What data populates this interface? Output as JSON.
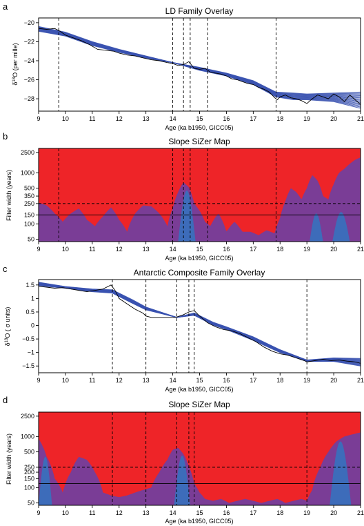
{
  "colors": {
    "band_line": "#3a52b0",
    "record_line": "#000000",
    "sizer_increase": "#ee2428",
    "sizer_insignificant": "#7a3d96",
    "sizer_decrease": "#3d6cba"
  },
  "chart_data": [
    {
      "panel_letter": "a",
      "type": "line",
      "title": "LD Family Overlay",
      "xlabel": "Age (ka b1950, GICC05)",
      "ylabel_prefix": "δ",
      "ylabel_sup": "18",
      "ylabel_suffix": "O (per mille)",
      "xlim": [
        9,
        21
      ],
      "ylim": [
        -29.3,
        -19.5
      ],
      "xticks": [
        9,
        10,
        11,
        12,
        13,
        14,
        15,
        16,
        17,
        18,
        19,
        20,
        21
      ],
      "yticks": [
        -28,
        -26,
        -24,
        -22,
        -20
      ],
      "vlines": [
        9.75,
        14.0,
        14.4,
        14.65,
        15.3,
        17.85
      ],
      "record": {
        "x": [
          9.0,
          9.3,
          9.6,
          9.8,
          10.0,
          10.3,
          10.6,
          10.9,
          11.2,
          11.5,
          11.8,
          12.0,
          12.3,
          12.6,
          12.9,
          13.2,
          13.5,
          13.8,
          14.0,
          14.2,
          14.4,
          14.6,
          14.8,
          15.0,
          15.2,
          15.4,
          15.6,
          15.8,
          16.0,
          16.2,
          16.4,
          16.6,
          16.8,
          17.0,
          17.2,
          17.4,
          17.6,
          17.8,
          17.9,
          18.0,
          18.2,
          18.4,
          18.6,
          18.8,
          19.0,
          19.2,
          19.4,
          19.6,
          19.8,
          20.0,
          20.2,
          20.4,
          20.6,
          20.8,
          21.0
        ],
        "y": [
          -20.6,
          -20.7,
          -20.6,
          -20.9,
          -21.3,
          -21.6,
          -21.9,
          -22.3,
          -22.8,
          -22.9,
          -23.0,
          -23.2,
          -23.4,
          -23.5,
          -23.7,
          -23.9,
          -24.0,
          -24.2,
          -24.3,
          -24.5,
          -24.4,
          -24.1,
          -24.8,
          -24.9,
          -24.8,
          -25.2,
          -25.3,
          -25.4,
          -25.6,
          -25.9,
          -26.0,
          -26.2,
          -26.4,
          -26.5,
          -26.8,
          -27.0,
          -27.3,
          -27.9,
          -28.1,
          -27.8,
          -27.6,
          -27.9,
          -28.0,
          -28.2,
          -28.5,
          -28.0,
          -27.6,
          -27.8,
          -28.0,
          -27.5,
          -27.8,
          -28.3,
          -27.6,
          -28.1,
          -28.6
        ]
      },
      "band": {
        "x": [
          9.0,
          10.0,
          11.0,
          12.0,
          13.0,
          14.0,
          15.0,
          16.0,
          17.0,
          17.85,
          18.5,
          19.0,
          20.0,
          21.0
        ],
        "lower": [
          -20.9,
          -21.4,
          -22.4,
          -23.1,
          -23.7,
          -24.2,
          -25.0,
          -25.6,
          -26.5,
          -27.8,
          -28.1,
          -28.1,
          -28.3,
          -29.0
        ],
        "upper": [
          -20.4,
          -21.0,
          -22.0,
          -22.8,
          -23.5,
          -24.2,
          -24.7,
          -25.3,
          -26.1,
          -27.3,
          -27.4,
          -27.5,
          -27.4,
          -27.3
        ]
      }
    },
    {
      "panel_letter": "b",
      "type": "heatmap",
      "title": "Slope SiZer Map",
      "xlabel": "Age (ka b1950, GICC05)",
      "ylabel": "Filter width (years)",
      "xlim": [
        9,
        21
      ],
      "log_y": true,
      "ylim": [
        45,
        3000
      ],
      "xticks": [
        9,
        10,
        11,
        12,
        13,
        14,
        15,
        16,
        17,
        18,
        19,
        20,
        21
      ],
      "yticks": [
        50,
        100,
        150,
        250,
        350,
        500,
        1000,
        2500
      ],
      "vlines": [
        9.75,
        14.0,
        14.4,
        14.65,
        15.3,
        17.85
      ],
      "hlines": [
        {
          "value": 250,
          "style": "dashed"
        },
        {
          "value": 150,
          "style": "solid"
        }
      ],
      "boundary": {
        "x": [
          9.0,
          9.3,
          9.6,
          9.9,
          10.2,
          10.5,
          10.8,
          11.1,
          11.4,
          11.7,
          12.0,
          12.3,
          12.6,
          12.9,
          13.2,
          13.5,
          13.8,
          14.0,
          14.2,
          14.4,
          14.6,
          14.8,
          15.0,
          15.2,
          15.4,
          15.7,
          16.0,
          16.3,
          16.6,
          16.9,
          17.2,
          17.5,
          17.8,
          18.0,
          18.2,
          18.4,
          18.6,
          18.8,
          19.0,
          19.2,
          19.4,
          19.6,
          19.8,
          20.0,
          20.2,
          20.4,
          20.6,
          20.8,
          21.0
        ],
        "scale": [
          260,
          230,
          160,
          110,
          160,
          200,
          120,
          90,
          140,
          210,
          120,
          70,
          160,
          230,
          220,
          160,
          90,
          200,
          420,
          650,
          520,
          250,
          180,
          110,
          90,
          160,
          70,
          110,
          70,
          70,
          60,
          75,
          65,
          130,
          280,
          500,
          420,
          300,
          500,
          900,
          700,
          350,
          300,
          600,
          1000,
          1200,
          1500,
          1800,
          2000
        ]
      },
      "decrease_blobs": [
        {
          "x0": 14.2,
          "x1": 14.85,
          "top": 450
        },
        {
          "x0": 19.1,
          "x1": 19.6,
          "top": 160
        },
        {
          "x0": 19.95,
          "x1": 20.6,
          "top": 170
        }
      ]
    },
    {
      "panel_letter": "c",
      "type": "line",
      "title": "Antarctic Composite Family Overlay",
      "xlabel": "Age (ka b1950, GICC05)",
      "ylabel_prefix": "δ",
      "ylabel_sup": "18",
      "ylabel_suffix": "O ( σ units)",
      "xlim": [
        9,
        21
      ],
      "ylim": [
        -1.75,
        1.7
      ],
      "xticks": [
        9,
        10,
        11,
        12,
        13,
        14,
        15,
        16,
        17,
        18,
        19,
        20,
        21
      ],
      "yticks": [
        -1.5,
        -1,
        -0.5,
        0,
        0.5,
        1,
        1.5
      ],
      "vlines": [
        11.75,
        13.0,
        14.15,
        14.6,
        14.8,
        19.0
      ],
      "record": {
        "x": [
          9.0,
          9.3,
          9.6,
          9.9,
          10.2,
          10.5,
          10.8,
          11.1,
          11.4,
          11.7,
          11.85,
          12.0,
          12.3,
          12.6,
          12.9,
          13.0,
          13.2,
          13.5,
          13.8,
          14.1,
          14.4,
          14.6,
          14.8,
          15.0,
          15.3,
          15.6,
          15.9,
          16.2,
          16.5,
          16.8,
          17.1,
          17.4,
          17.7,
          18.0,
          18.3,
          18.6,
          18.9,
          19.0,
          19.3,
          19.6,
          19.9,
          20.2,
          20.5,
          20.8,
          21.0
        ],
        "y": [
          1.45,
          1.42,
          1.38,
          1.4,
          1.35,
          1.3,
          1.25,
          1.3,
          1.35,
          1.5,
          1.3,
          1.0,
          0.8,
          0.6,
          0.45,
          0.35,
          0.3,
          0.3,
          0.3,
          0.3,
          0.4,
          0.5,
          0.55,
          0.35,
          0.1,
          -0.05,
          -0.15,
          -0.2,
          -0.3,
          -0.45,
          -0.6,
          -0.8,
          -0.95,
          -1.05,
          -1.1,
          -1.2,
          -1.3,
          -1.35,
          -1.3,
          -1.25,
          -1.3,
          -1.28,
          -1.32,
          -1.35,
          -1.4
        ]
      },
      "band": {
        "x": [
          9.0,
          10.0,
          11.0,
          11.75,
          12.5,
          13.0,
          14.15,
          14.8,
          15.5,
          16.0,
          17.0,
          18.0,
          19.0,
          20.0,
          21.0
        ],
        "lower": [
          1.48,
          1.38,
          1.25,
          1.2,
          0.82,
          0.58,
          0.3,
          0.38,
          0.02,
          -0.15,
          -0.55,
          -1.0,
          -1.33,
          -1.33,
          -1.5
        ],
        "upper": [
          1.6,
          1.44,
          1.35,
          1.32,
          0.95,
          0.68,
          0.3,
          0.46,
          0.12,
          -0.05,
          -0.42,
          -0.9,
          -1.28,
          -1.2,
          -1.22
        ]
      }
    },
    {
      "panel_letter": "d",
      "type": "heatmap",
      "title": "Slope SiZer Map",
      "xlabel": "Age (ka b1950, GICC05)",
      "ylabel": "Filter width (years)",
      "xlim": [
        9,
        21
      ],
      "log_y": true,
      "ylim": [
        45,
        3000
      ],
      "xticks": [
        9,
        10,
        11,
        12,
        13,
        14,
        15,
        16,
        17,
        18,
        19,
        20,
        21
      ],
      "yticks": [
        50,
        100,
        150,
        200,
        250,
        500,
        1000,
        2500
      ],
      "vlines": [
        11.75,
        13.0,
        14.15,
        14.6,
        14.8,
        19.0
      ],
      "hlines": [
        {
          "value": 250,
          "style": "dashed"
        },
        {
          "value": 120,
          "style": "solid"
        }
      ],
      "boundary": {
        "x": [
          9.0,
          9.3,
          9.6,
          9.9,
          10.2,
          10.5,
          10.8,
          11.1,
          11.4,
          11.7,
          12.0,
          12.3,
          12.6,
          12.9,
          13.2,
          13.5,
          13.8,
          14.0,
          14.2,
          14.4,
          14.6,
          14.8,
          15.0,
          15.2,
          15.5,
          15.8,
          16.1,
          16.4,
          16.7,
          17.0,
          17.3,
          17.6,
          17.9,
          18.2,
          18.5,
          18.8,
          19.0,
          19.2,
          19.5,
          19.8,
          20.1,
          20.4,
          20.7,
          21.0
        ],
        "scale": [
          900,
          400,
          150,
          80,
          200,
          400,
          350,
          200,
          80,
          70,
          65,
          70,
          80,
          90,
          100,
          200,
          350,
          550,
          600,
          450,
          260,
          120,
          80,
          60,
          55,
          60,
          50,
          55,
          60,
          55,
          50,
          55,
          60,
          50,
          55,
          60,
          55,
          90,
          250,
          500,
          800,
          1000,
          1100,
          1200
        ]
      },
      "decrease_blobs": [
        {
          "x0": 9.0,
          "x1": 9.5,
          "top": 400
        },
        {
          "x0": 14.05,
          "x1": 14.65,
          "top": 420
        },
        {
          "x0": 19.85,
          "x1": 20.65,
          "top": 800
        }
      ]
    }
  ]
}
